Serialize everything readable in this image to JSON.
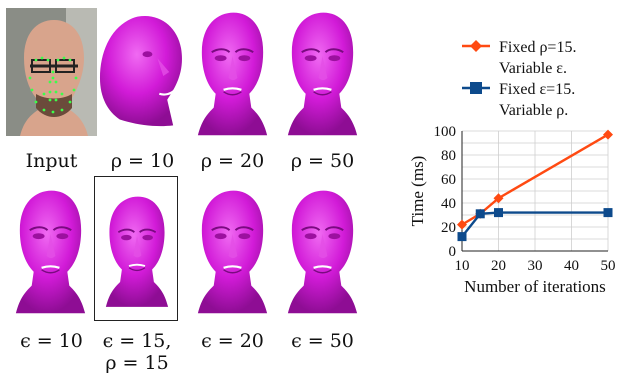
{
  "captions": {
    "input": "Input",
    "rho10": "ρ = 10",
    "rho20": "ρ = 20",
    "rho50": "ρ = 50",
    "eps10": "ϵ = 10",
    "eps15_line1": "ϵ = 15,",
    "eps15_line2": "ρ = 15",
    "eps20": "ϵ = 20",
    "eps50": "ϵ = 50"
  },
  "colors": {
    "face": "#d21bd8",
    "series1": "#ff4a12",
    "series2": "#0d4a8c"
  },
  "chart_data": {
    "type": "line",
    "xlabel": "Number of iterations",
    "ylabel": "Time (ms)",
    "xlim": [
      10,
      50
    ],
    "ylim": [
      0,
      100
    ],
    "xticks": [
      10,
      20,
      30,
      40,
      50
    ],
    "yticks": [
      0,
      10,
      20,
      30,
      40,
      50,
      60,
      70,
      80,
      90,
      100
    ],
    "grid": true,
    "legend_position": "top",
    "series": [
      {
        "name_line1": "Fixed ρ=15.",
        "name_line2": "Variable ε.",
        "marker": "diamond",
        "x": [
          10,
          15,
          20,
          50
        ],
        "y": [
          22,
          31,
          44,
          97
        ]
      },
      {
        "name_line1": "Fixed ε=15.",
        "name_line2": "Variable ρ.",
        "marker": "square",
        "x": [
          10,
          15,
          20,
          50
        ],
        "y": [
          12,
          31,
          32,
          32
        ]
      }
    ]
  }
}
